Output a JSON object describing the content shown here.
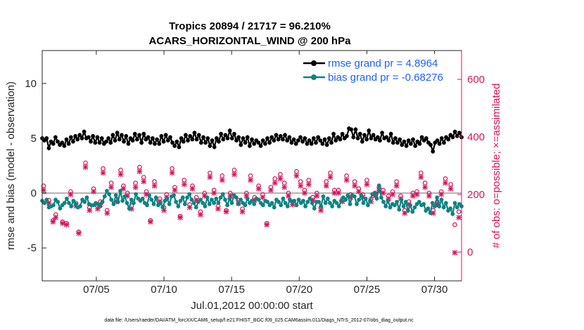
{
  "chart_data": {
    "type": "line",
    "title_line1": "Tropics 20894 / 21717 = 96.210%",
    "title_line2": "ACARS_HORIZONTAL_WIND @ 200 hPa",
    "xlabel": "Jul.01,2012 00:00:00 start",
    "ylabel_left": "rmse and bias (model - observation)",
    "ylabel_right": "# of obs: o=possible; ×=assimilated",
    "x_ticks": [
      {
        "label": "07/05",
        "day": 5
      },
      {
        "label": "07/10",
        "day": 10
      },
      {
        "label": "07/15",
        "day": 15
      },
      {
        "label": "07/20",
        "day": 20
      },
      {
        "label": "07/25",
        "day": 25
      },
      {
        "label": "07/30",
        "day": 30
      }
    ],
    "xlim": [
      1,
      32
    ],
    "ylim_left": [
      -8,
      13
    ],
    "yticks_left": [
      -5,
      0,
      5,
      10
    ],
    "ylim_right": [
      -100,
      700
    ],
    "yticks_right": [
      0,
      200,
      400,
      600
    ],
    "zero_line": 0,
    "legend": {
      "placement": "top-right",
      "entries": [
        "rmse grand pr = 4.8964",
        "bias grand pr = -0.68276"
      ]
    },
    "colors": {
      "rmse": "#000000",
      "bias": "#0f8282",
      "obs": "#d4145a",
      "zero": "#b4b4b4",
      "legend_text": "#1f5fff"
    },
    "series": [
      {
        "name": "rmse",
        "axis": "left",
        "values": [
          5.0,
          4.8,
          5.0,
          4.1,
          4.7,
          4.5,
          5.1,
          4.7,
          4.4,
          4.6,
          4.3,
          4.9,
          4.5,
          5.1,
          4.7,
          5.2,
          4.9,
          5.3,
          5.0,
          5.6,
          5.0,
          5.1,
          4.7,
          5.2,
          4.6,
          5.1,
          4.6,
          5.0,
          4.5,
          4.7,
          5.0,
          4.6,
          5.3,
          4.8,
          5.5,
          4.9,
          5.3,
          4.7,
          5.2,
          4.5,
          5.0,
          4.8,
          5.4,
          4.9,
          5.3,
          4.6,
          5.4,
          4.9,
          5.1,
          4.6,
          5.0,
          4.5,
          4.9,
          4.5,
          5.2,
          4.7,
          5.3,
          4.8,
          5.1,
          4.6,
          4.3,
          4.7,
          4.2,
          5.0,
          4.7,
          5.3,
          4.8,
          5.2,
          4.9,
          5.5,
          4.9,
          5.3,
          4.6,
          5.1,
          4.6,
          5.0,
          4.3,
          4.8,
          4.2,
          5.0,
          4.7,
          5.4,
          4.9,
          5.3,
          5.0,
          5.7,
          5.0,
          5.4,
          4.8,
          5.1,
          4.4,
          5.0,
          4.6,
          5.1,
          4.3,
          4.9,
          4.5,
          4.8,
          4.6,
          4.3,
          4.8,
          4.5,
          5.0,
          4.6,
          5.1,
          4.8,
          5.3,
          4.9,
          5.2,
          4.9,
          5.3,
          4.8,
          5.1,
          4.6,
          4.9,
          4.5,
          4.8,
          5.1,
          4.7,
          5.0,
          4.5,
          4.8,
          4.5,
          5.0,
          4.6,
          5.1,
          4.8,
          4.5,
          4.9,
          4.4,
          5.0,
          4.6,
          5.4,
          4.8,
          5.1,
          4.9,
          5.4,
          5.0,
          5.2,
          5.9,
          5.8,
          5.1,
          5.8,
          5.0,
          5.4,
          4.7,
          5.3,
          4.9,
          5.7,
          5.0,
          5.3,
          4.9,
          5.1,
          4.8,
          5.5,
          5.0,
          5.1,
          4.8,
          5.4,
          4.6,
          5.0,
          4.6,
          4.9,
          4.4,
          4.7,
          4.3,
          4.8,
          4.5,
          4.9,
          4.3,
          4.7,
          4.5,
          5.1,
          4.8,
          5.0,
          4.6,
          4.4,
          3.8,
          4.6,
          4.8,
          4.5,
          5.0,
          4.6,
          5.1,
          4.9,
          5.3,
          5.1,
          5.6,
          5.2,
          5.5,
          5.1
        ]
      },
      {
        "name": "bias",
        "axis": "left",
        "values": [
          -0.7,
          -0.9,
          -0.6,
          -1.3,
          -1.2,
          -1.1,
          -0.6,
          -0.8,
          -1.4,
          -1.1,
          -0.9,
          -0.5,
          -0.9,
          -1.2,
          -0.7,
          -1.0,
          -1.3,
          -1.2,
          -0.6,
          -0.8,
          -0.4,
          -1.0,
          -1.1,
          -1.1,
          -0.9,
          -1.0,
          -1.2,
          -0.8,
          -0.3,
          0.2,
          -0.1,
          -0.6,
          -1.0,
          -0.2,
          -0.8,
          0.2,
          -0.7,
          -0.3,
          -0.9,
          -1.4,
          -0.6,
          -0.9,
          -0.1,
          -0.5,
          -0.7,
          -0.5,
          -0.9,
          -1.1,
          -0.2,
          -0.6,
          -1.0,
          -0.4,
          -1.1,
          -0.9,
          -1.3,
          -0.7,
          -0.5,
          -1.0,
          -0.3,
          -0.2,
          -0.8,
          -1.2,
          -0.7,
          -0.4,
          -1.0,
          -0.4,
          -0.1,
          -0.6,
          -0.9,
          -1.3,
          -0.8,
          -0.6,
          -0.9,
          -1.2,
          -0.4,
          -1.0,
          -0.6,
          -0.9,
          -0.5,
          -0.9,
          -0.4,
          -0.1,
          -0.6,
          -1.1,
          -0.5,
          -0.9,
          -0.2,
          -0.4,
          -1.0,
          -0.6,
          -0.9,
          -1.1,
          -0.5,
          -0.9,
          -0.7,
          -1.0,
          -0.5,
          -0.6,
          -0.9,
          -1.1,
          -0.7,
          -0.8,
          -1.1,
          -0.9,
          -1.3,
          -0.6,
          -0.8,
          -1.1,
          -0.5,
          -0.9,
          -1.2,
          -0.6,
          -0.8,
          -0.7,
          -1.1,
          -0.6,
          -0.9,
          -0.7,
          -1.2,
          -0.8,
          -0.5,
          -0.9,
          -1.4,
          -0.8,
          -0.8,
          -1.2,
          -0.3,
          -0.9,
          -0.5,
          -0.9,
          -1.2,
          -0.7,
          -0.9,
          -1.2,
          -0.7,
          -0.4,
          -0.6,
          -0.2,
          -1.0,
          -0.2,
          -0.3,
          -1.0,
          -0.6,
          -0.2,
          -0.9,
          -0.5,
          -1.1,
          -0.7,
          -0.1,
          0.0,
          -0.5,
          0.7,
          -0.4,
          -0.8,
          -1.2,
          -0.7,
          -1.3,
          -1.0,
          -1.1,
          -0.8,
          -1.5,
          -0.6,
          -1.2,
          -0.8,
          -1.6,
          -1.1,
          -1.7,
          -1.3,
          -1.0,
          -0.8,
          -1.1,
          -1.0,
          -1.6,
          -1.4,
          -1.8,
          -0.9,
          -1.2,
          -0.4,
          -1.2,
          -0.6,
          -1.3,
          -0.9,
          -1.6,
          -1.4,
          -1.9,
          -0.9,
          -1.3,
          -1.0,
          -1.2
        ]
      },
      {
        "name": "obs possible",
        "axis": "right",
        "days": [
          1.1,
          1.5,
          1.8,
          2.0,
          2.5,
          2.8,
          3.1,
          3.5,
          3.7,
          4.2,
          4.5,
          4.8,
          5.1,
          5.3,
          5.5,
          5.8,
          6.1,
          6.5,
          6.8,
          7.0,
          7.3,
          7.6,
          7.9,
          8.2,
          8.5,
          8.7,
          9.0,
          9.3,
          9.7,
          10.0,
          10.2,
          10.6,
          10.8,
          11.2,
          11.5,
          11.9,
          12.1,
          12.4,
          12.7,
          13.0,
          13.4,
          13.7,
          14.0,
          14.3,
          14.6,
          14.9,
          15.2,
          15.5,
          15.8,
          16.1,
          16.4,
          16.7,
          17.0,
          17.3,
          17.6,
          17.9,
          18.2,
          18.6,
          18.9,
          19.2,
          19.5,
          19.8,
          20.1,
          20.4,
          20.7,
          21.0,
          21.3,
          21.6,
          22.0,
          22.3,
          22.6,
          22.9,
          23.2,
          23.5,
          23.8,
          24.1,
          24.4,
          24.7,
          25.0,
          25.3,
          25.6,
          25.9,
          26.2,
          26.6,
          26.9,
          27.2,
          27.5,
          27.8,
          28.1,
          28.4,
          28.7,
          29.0,
          29.3,
          29.6,
          29.9,
          30.2,
          30.5,
          30.8,
          31.2,
          31.5,
          31.8
        ],
        "values": [
          230,
          180,
          110,
          130,
          105,
          100,
          210,
          170,
          70,
          310,
          155,
          220,
          160,
          175,
          290,
          145,
          240,
          185,
          285,
          230,
          205,
          160,
          240,
          295,
          260,
          210,
          110,
          245,
          185,
          155,
          200,
          290,
          225,
          125,
          250,
          165,
          230,
          190,
          140,
          205,
          275,
          215,
          160,
          265,
          145,
          205,
          285,
          180,
          150,
          205,
          265,
          190,
          230,
          200,
          100,
          225,
          255,
          270,
          240,
          205,
          175,
          280,
          245,
          215,
          250,
          190,
          205,
          155,
          245,
          275,
          215,
          215,
          185,
          265,
          200,
          245,
          220,
          200,
          250,
          185,
          205,
          225,
          215,
          195,
          210,
          245,
          195,
          145,
          175,
          205,
          210,
          275,
          240,
          205,
          145,
          175,
          210,
          255,
          235,
          95,
          140
        ]
      },
      {
        "name": "obs assimilated",
        "axis": "right",
        "days": [
          1.1,
          1.5,
          1.8,
          2.0,
          2.5,
          2.8,
          3.1,
          3.5,
          3.7,
          4.2,
          4.5,
          4.8,
          5.1,
          5.3,
          5.5,
          5.8,
          6.1,
          6.5,
          6.8,
          7.0,
          7.3,
          7.6,
          7.9,
          8.2,
          8.5,
          8.7,
          9.0,
          9.3,
          9.7,
          10.0,
          10.2,
          10.6,
          10.8,
          11.2,
          11.5,
          11.9,
          12.1,
          12.4,
          12.7,
          13.0,
          13.4,
          13.7,
          14.0,
          14.3,
          14.6,
          14.9,
          15.2,
          15.5,
          15.8,
          16.1,
          16.4,
          16.7,
          17.0,
          17.3,
          17.6,
          17.9,
          18.2,
          18.6,
          18.9,
          19.2,
          19.5,
          19.8,
          20.1,
          20.4,
          20.7,
          21.0,
          21.3,
          21.6,
          22.0,
          22.3,
          22.6,
          22.9,
          23.2,
          23.5,
          23.8,
          24.1,
          24.4,
          24.7,
          25.0,
          25.3,
          25.6,
          25.9,
          26.2,
          26.6,
          26.9,
          27.2,
          27.5,
          27.8,
          28.1,
          28.4,
          28.7,
          29.0,
          29.3,
          29.6,
          29.9,
          30.2,
          30.5,
          30.8,
          31.2,
          31.5,
          31.8
        ],
        "values": [
          215,
          170,
          105,
          120,
          100,
          95,
          200,
          160,
          65,
          295,
          145,
          210,
          150,
          165,
          275,
          135,
          225,
          175,
          270,
          220,
          195,
          150,
          225,
          280,
          245,
          200,
          105,
          230,
          175,
          145,
          190,
          275,
          215,
          120,
          235,
          155,
          220,
          180,
          130,
          195,
          260,
          205,
          150,
          250,
          140,
          195,
          270,
          170,
          140,
          195,
          250,
          180,
          220,
          190,
          95,
          215,
          240,
          255,
          225,
          195,
          165,
          265,
          230,
          205,
          235,
          180,
          195,
          145,
          230,
          260,
          205,
          205,
          175,
          250,
          190,
          230,
          210,
          190,
          235,
          175,
          195,
          215,
          205,
          185,
          200,
          230,
          185,
          135,
          165,
          195,
          200,
          260,
          225,
          195,
          135,
          165,
          200,
          240,
          220,
          -2,
          120
        ]
      }
    ],
    "footnote": "data file: /Users/raeder/DAI/ATM_forcXX/CAM6_setup/f.e21.FHIST_BGC.f09_025.CAM6assim.011/Diags_NTrS_2012-07/obs_diag_output.nc"
  }
}
